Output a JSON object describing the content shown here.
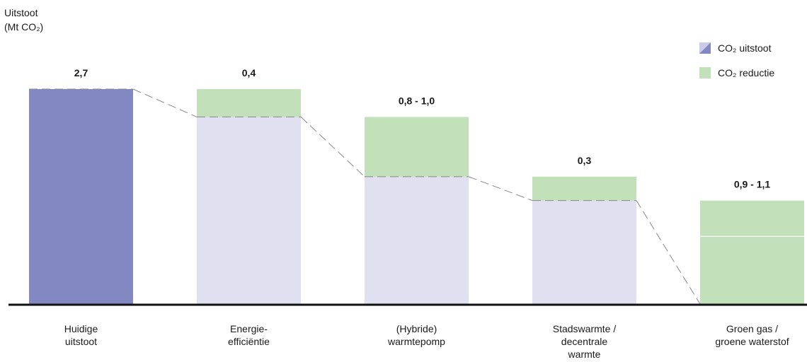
{
  "chart_data": {
    "type": "bar",
    "ylabel_lines": [
      "Uitstoot",
      "(Mt CO₂)"
    ],
    "legend": [
      {
        "label": "CO₂ uitstoot",
        "color": "#8388c2",
        "key": "emission"
      },
      {
        "label": "CO₂ reductie",
        "color": "#c2e0b9",
        "key": "reduction"
      }
    ],
    "ylim": [
      0,
      2.7
    ],
    "bars": [
      {
        "category": [
          "Huidige",
          "uitstoot"
        ],
        "label": "2,7",
        "kind": "emission",
        "base": 0,
        "top": 2.7
      },
      {
        "category": [
          "Energie-",
          "efficiëntie"
        ],
        "label": "0,4",
        "kind": "reduction",
        "base": 2.35,
        "top": 2.7
      },
      {
        "category": [
          "(Hybride)",
          "warmtepomp"
        ],
        "label": "0,8 - 1,0",
        "kind": "reduction",
        "base": 1.6,
        "top": 2.35
      },
      {
        "category": [
          "Stadswarmte /",
          "decentrale",
          "warmte"
        ],
        "label": "0,3",
        "kind": "reduction",
        "base": 1.3,
        "top": 1.6
      },
      {
        "category": [
          "Groen gas /",
          "groene waterstof"
        ],
        "label": "0,9 - 1,1",
        "kind": "reduction",
        "base": 0,
        "top": 1.3,
        "range_split": 0.85
      }
    ],
    "colors": {
      "emission": "#8388c2",
      "remaining": "#e0e0f0",
      "reduction": "#c2e0b9",
      "axis": "#111111",
      "connector": "#888888"
    }
  }
}
